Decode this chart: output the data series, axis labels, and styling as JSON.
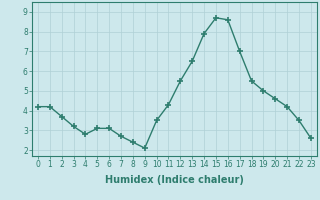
{
  "x": [
    0,
    1,
    2,
    3,
    4,
    5,
    6,
    7,
    8,
    9,
    10,
    11,
    12,
    13,
    14,
    15,
    16,
    17,
    18,
    19,
    20,
    21,
    22,
    23
  ],
  "y": [
    4.2,
    4.2,
    3.7,
    3.2,
    2.8,
    3.1,
    3.1,
    2.7,
    2.4,
    2.1,
    3.5,
    4.3,
    5.5,
    6.5,
    7.9,
    8.7,
    8.6,
    7.0,
    5.5,
    5.0,
    4.6,
    4.2,
    3.5,
    2.6
  ],
  "line_color": "#2e7d6e",
  "marker": "+",
  "marker_size": 4,
  "line_width": 1.0,
  "xlabel": "Humidex (Indice chaleur)",
  "xlabel_fontsize": 7,
  "yticks": [
    2,
    3,
    4,
    5,
    6,
    7,
    8,
    9
  ],
  "ylim": [
    1.7,
    9.5
  ],
  "xlim": [
    -0.5,
    23.5
  ],
  "xtick_labels": [
    "0",
    "1",
    "2",
    "3",
    "4",
    "5",
    "6",
    "7",
    "8",
    "9",
    "10",
    "11",
    "12",
    "13",
    "14",
    "15",
    "16",
    "17",
    "18",
    "19",
    "20",
    "21",
    "22",
    "23"
  ],
  "bg_color": "#cde8ec",
  "grid_color": "#b0d0d6",
  "tick_fontsize": 5.5,
  "spine_color": "#2e7d6e"
}
